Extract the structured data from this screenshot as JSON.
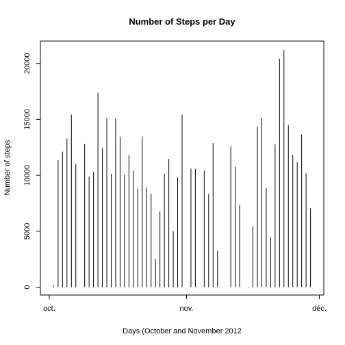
{
  "chart_data": {
    "type": "histogram-bars",
    "title": "Number of Steps per Day",
    "xlabel": "Days (October and November 2012",
    "ylabel": "Number of steps",
    "x_start": "2012-10-01",
    "x_end": "2012-11-30",
    "xlim": [
      "2012-09-29",
      "2012-12-02"
    ],
    "ylim": [
      -700,
      22000
    ],
    "x_ticks": [
      {
        "date": "2012-10-01",
        "label": "oct."
      },
      {
        "date": "2012-11-01",
        "label": "nov."
      },
      {
        "date": "2012-12-01",
        "label": "déc."
      }
    ],
    "y_ticks": [
      0,
      5000,
      10000,
      15000,
      20000
    ],
    "values": [
      0,
      126,
      11352,
      12116,
      13294,
      15420,
      11015,
      0,
      12811,
      9900,
      10304,
      17382,
      12426,
      15098,
      10139,
      15084,
      13452,
      10056,
      11829,
      10395,
      8821,
      13460,
      8918,
      8355,
      2492,
      6778,
      10119,
      11458,
      5018,
      9819,
      15414,
      0,
      10600,
      10571,
      0,
      10439,
      8334,
      12883,
      3219,
      0,
      0,
      12608,
      10765,
      7336,
      0,
      41,
      5441,
      14339,
      15110,
      8841,
      4472,
      12787,
      20427,
      21194,
      14478,
      11834,
      11162,
      13646,
      10183,
      7047,
      0
    ]
  }
}
